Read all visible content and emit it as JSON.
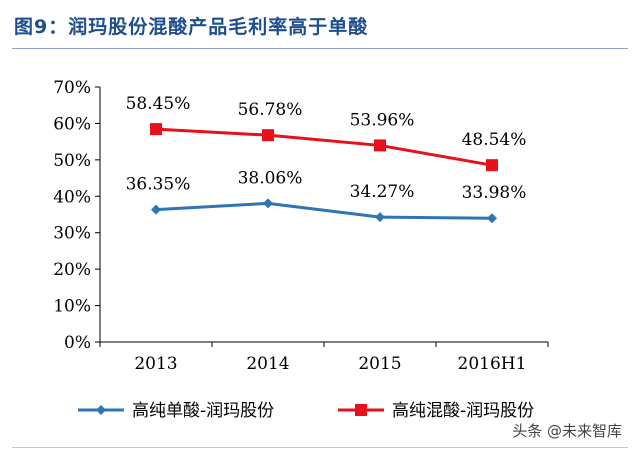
{
  "title": "图9：润玛股份混酸产品毛利率高于单酸",
  "watermark": "头条 @未来智库",
  "colors": {
    "series_blue": "#2e75b6",
    "series_red": "#e8101a",
    "title": "#1f4e8c"
  },
  "chart_data": {
    "type": "line",
    "title": "图9：润玛股份混酸产品毛利率高于单酸",
    "categories": [
      "2013",
      "2014",
      "2015",
      "2016H1"
    ],
    "ylim": [
      0,
      70
    ],
    "yticks": [
      "0%",
      "10%",
      "20%",
      "30%",
      "40%",
      "50%",
      "60%",
      "70%"
    ],
    "grid": false,
    "legend_position": "bottom",
    "series": [
      {
        "name": "高纯单酸-润玛股份",
        "values": [
          36.35,
          38.06,
          34.27,
          33.98
        ],
        "labels": [
          "36.35%",
          "38.06%",
          "34.27%",
          "33.98%"
        ],
        "color": "#2e75b6",
        "marker": "diamond"
      },
      {
        "name": "高纯混酸-润玛股份",
        "values": [
          58.45,
          56.78,
          53.96,
          48.54
        ],
        "labels": [
          "58.45%",
          "56.78%",
          "53.96%",
          "48.54%"
        ],
        "color": "#e8101a",
        "marker": "square"
      }
    ]
  }
}
